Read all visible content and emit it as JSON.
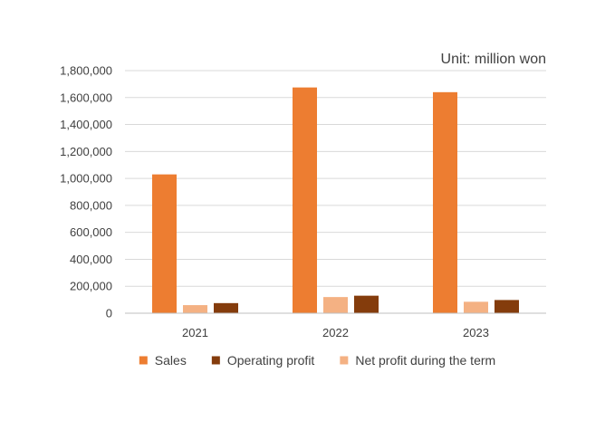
{
  "chart_data": {
    "type": "bar",
    "title": "",
    "unit_label": "Unit: million won",
    "xlabel": "",
    "ylabel": "",
    "categories": [
      "2021",
      "2022",
      "2023"
    ],
    "series": [
      {
        "name": "Sales",
        "color": "#ED7D31",
        "values": [
          1030000,
          1675000,
          1640000
        ]
      },
      {
        "name": "Net profit during the term",
        "color": "#F4B183",
        "values": [
          60000,
          120000,
          85000
        ]
      },
      {
        "name": "Operating profit",
        "color": "#843C0C",
        "values": [
          75000,
          130000,
          98000
        ]
      }
    ],
    "legend_order": [
      0,
      2,
      1
    ],
    "ylim": [
      0,
      1800000
    ],
    "y_ticks": [
      0,
      200000,
      400000,
      600000,
      800000,
      1000000,
      1200000,
      1400000,
      1600000,
      1800000
    ],
    "y_tick_labels": [
      "0",
      "200,000",
      "400,000",
      "600,000",
      "800,000",
      "1,000,000",
      "1,200,000",
      "1,400,000",
      "1,600,000",
      "1,800,000"
    ],
    "grid": true,
    "legend_position": "bottom"
  }
}
